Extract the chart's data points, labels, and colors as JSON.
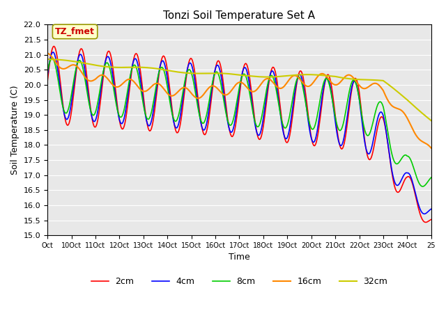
{
  "title": "Tonzi Soil Temperature Set A",
  "xlabel": "Time",
  "ylabel": "Soil Temperature (C)",
  "ylim": [
    15.0,
    22.0
  ],
  "yticks": [
    15.0,
    15.5,
    16.0,
    16.5,
    17.0,
    17.5,
    18.0,
    18.5,
    19.0,
    19.5,
    20.0,
    20.5,
    21.0,
    21.5,
    22.0
  ],
  "xtick_labels": [
    "Oct",
    "10Oct",
    "11Oct",
    "12Oct",
    "13Oct",
    "14Oct",
    "15Oct",
    "16Oct",
    "17Oct",
    "18Oct",
    "19Oct",
    "20Oct",
    "21Oct",
    "22Oct",
    "23Oct",
    "24Oct",
    "25"
  ],
  "legend_labels": [
    "2cm",
    "4cm",
    "8cm",
    "16cm",
    "32cm"
  ],
  "legend_colors": [
    "#ff0000",
    "#0000ff",
    "#00cc00",
    "#ff8800",
    "#cccc00"
  ],
  "annotation_text": "TZ_fmet",
  "annotation_color": "#cc0000",
  "annotation_bg": "#ffffcc",
  "n_points": 481
}
